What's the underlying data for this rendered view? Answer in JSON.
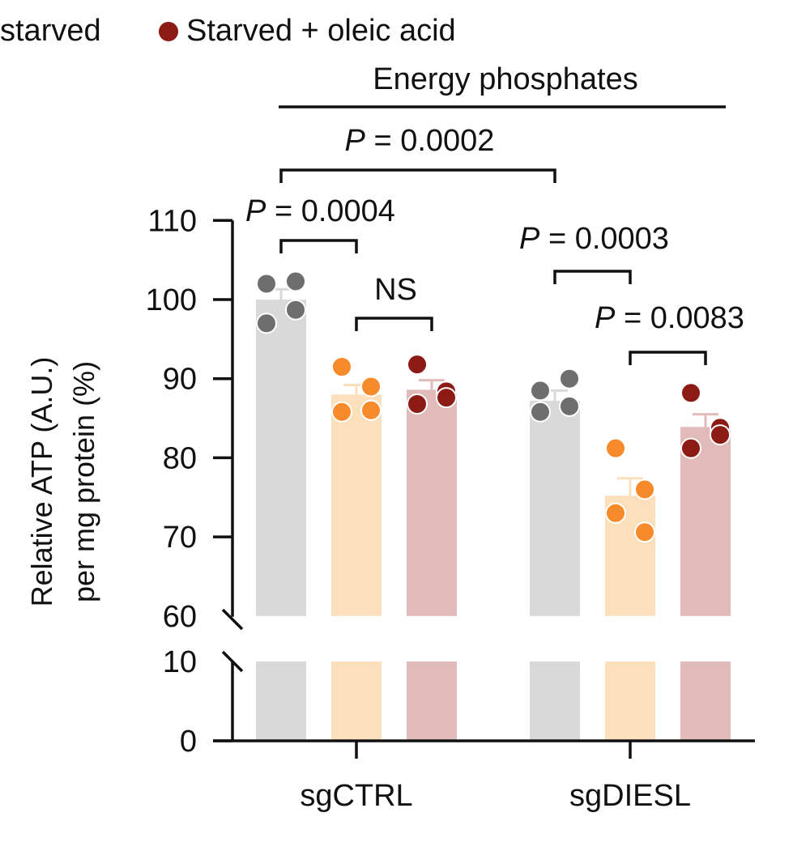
{
  "chart_data": {
    "type": "bar",
    "title": "Energy phosphates",
    "ylabel": [
      "Relative ATP (A.U.)",
      "per mg protein (%)"
    ],
    "xlabel": "",
    "broken_axis": true,
    "ylim_lower": [
      0,
      10
    ],
    "ylim_upper": [
      60,
      110
    ],
    "yticks_lower": [
      0,
      10
    ],
    "yticks_upper": [
      60,
      70,
      80,
      90,
      100,
      110
    ],
    "categories": [
      "sgCTRL",
      "sgDIESL"
    ],
    "legend": {
      "placement": "top",
      "entries": [
        {
          "label": "starved",
          "series": 1
        },
        {
          "label": "Starved + oleic acid",
          "series": 2
        }
      ]
    },
    "series": [
      {
        "name": "",
        "bar_color": "#d9d9d9",
        "point_color": "#6e6e6e",
        "values": [
          100.0,
          87.2
        ],
        "sem": [
          1.3,
          1.3
        ],
        "points": [
          [
            102.0,
            102.3,
            97.0,
            98.7
          ],
          [
            88.5,
            90.0,
            85.8,
            86.5
          ]
        ]
      },
      {
        "name": "starved",
        "bar_color": "#fce0bc",
        "point_color": "#f78a2a",
        "values": [
          88.0,
          75.2
        ],
        "sem": [
          1.2,
          2.2
        ],
        "points": [
          [
            91.5,
            89.0,
            85.8,
            86.0
          ],
          [
            81.2,
            76.0,
            73.0,
            70.6
          ]
        ]
      },
      {
        "name": "Starved + oleic acid",
        "bar_color": "#e0bbba",
        "point_color": "#8c1a15",
        "values": [
          88.6,
          83.9
        ],
        "sem": [
          1.2,
          1.6
        ],
        "points": [
          [
            91.8,
            88.4,
            86.8,
            87.6
          ],
          [
            88.2,
            83.8,
            81.2,
            82.9
          ]
        ]
      }
    ],
    "comparisons": [
      {
        "label_prefix": "P",
        "label_rest": " = 0.0002",
        "from": [
          0,
          0
        ],
        "to": [
          1,
          0
        ]
      },
      {
        "label_prefix": "P",
        "label_rest": " = 0.0004",
        "from": [
          0,
          0
        ],
        "to": [
          0,
          1
        ]
      },
      {
        "label_prefix": "",
        "label_rest": "NS",
        "from": [
          0,
          1
        ],
        "to": [
          0,
          2
        ]
      },
      {
        "label_prefix": "P",
        "label_rest": " = 0.0003",
        "from": [
          1,
          0
        ],
        "to": [
          1,
          1
        ]
      },
      {
        "label_prefix": "P",
        "label_rest": " = 0.0083",
        "from": [
          1,
          1
        ],
        "to": [
          1,
          2
        ]
      }
    ]
  }
}
